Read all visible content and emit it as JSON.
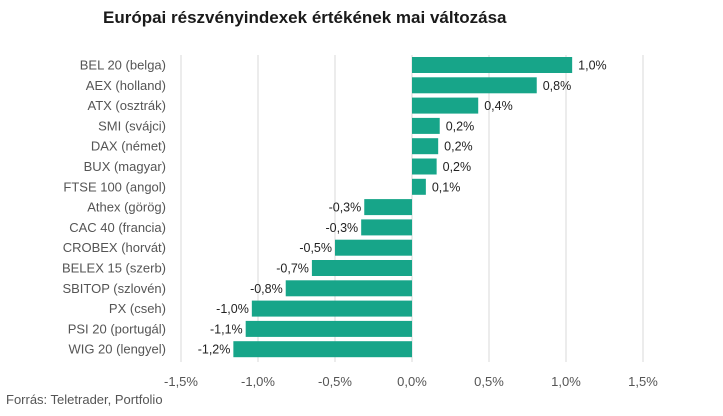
{
  "title": "Európai részvényindexek értékének mai változása",
  "source": "Forrás: Teletrader, Portfolio",
  "colors": {
    "bar": "#17a589",
    "grid": "#d9d9d9"
  },
  "chart_data": {
    "type": "bar",
    "orientation": "horizontal",
    "title": "Európai részvényindexek értékének mai változása",
    "xlim": [
      -1.5,
      1.5
    ],
    "xticks": [
      -1.5,
      -1.0,
      -0.5,
      0.0,
      0.5,
      1.0,
      1.5
    ],
    "xtick_labels": [
      "-1,5%",
      "-1,0%",
      "-0,5%",
      "0,0%",
      "0,5%",
      "1,0%",
      "1,5%"
    ],
    "grid": "vertical",
    "categories": [
      "BEL 20 (belga)",
      "AEX (holland)",
      "ATX (osztrák)",
      "SMI (svájci)",
      "DAX (német)",
      "BUX (magyar)",
      "FTSE 100 (angol)",
      "Athex (görög)",
      "CAC 40 (francia)",
      "CROBEX (horvát)",
      "BELEX 15 (szerb)",
      "SBITOP (szlovén)",
      "PX (cseh)",
      "PSI 20 (portugál)",
      "WIG 20 (lengyel)"
    ],
    "values": [
      1.04,
      0.81,
      0.43,
      0.18,
      0.17,
      0.16,
      0.09,
      -0.31,
      -0.33,
      -0.5,
      -0.65,
      -0.82,
      -1.04,
      -1.08,
      -1.16
    ],
    "value_labels": [
      "1,0%",
      "0,8%",
      "0,4%",
      "0,2%",
      "0,2%",
      "0,2%",
      "0,1%",
      "-0,3%",
      "-0,3%",
      "-0,5%",
      "-0,7%",
      "-0,8%",
      "-1,0%",
      "-1,1%",
      "-1,2%"
    ]
  }
}
